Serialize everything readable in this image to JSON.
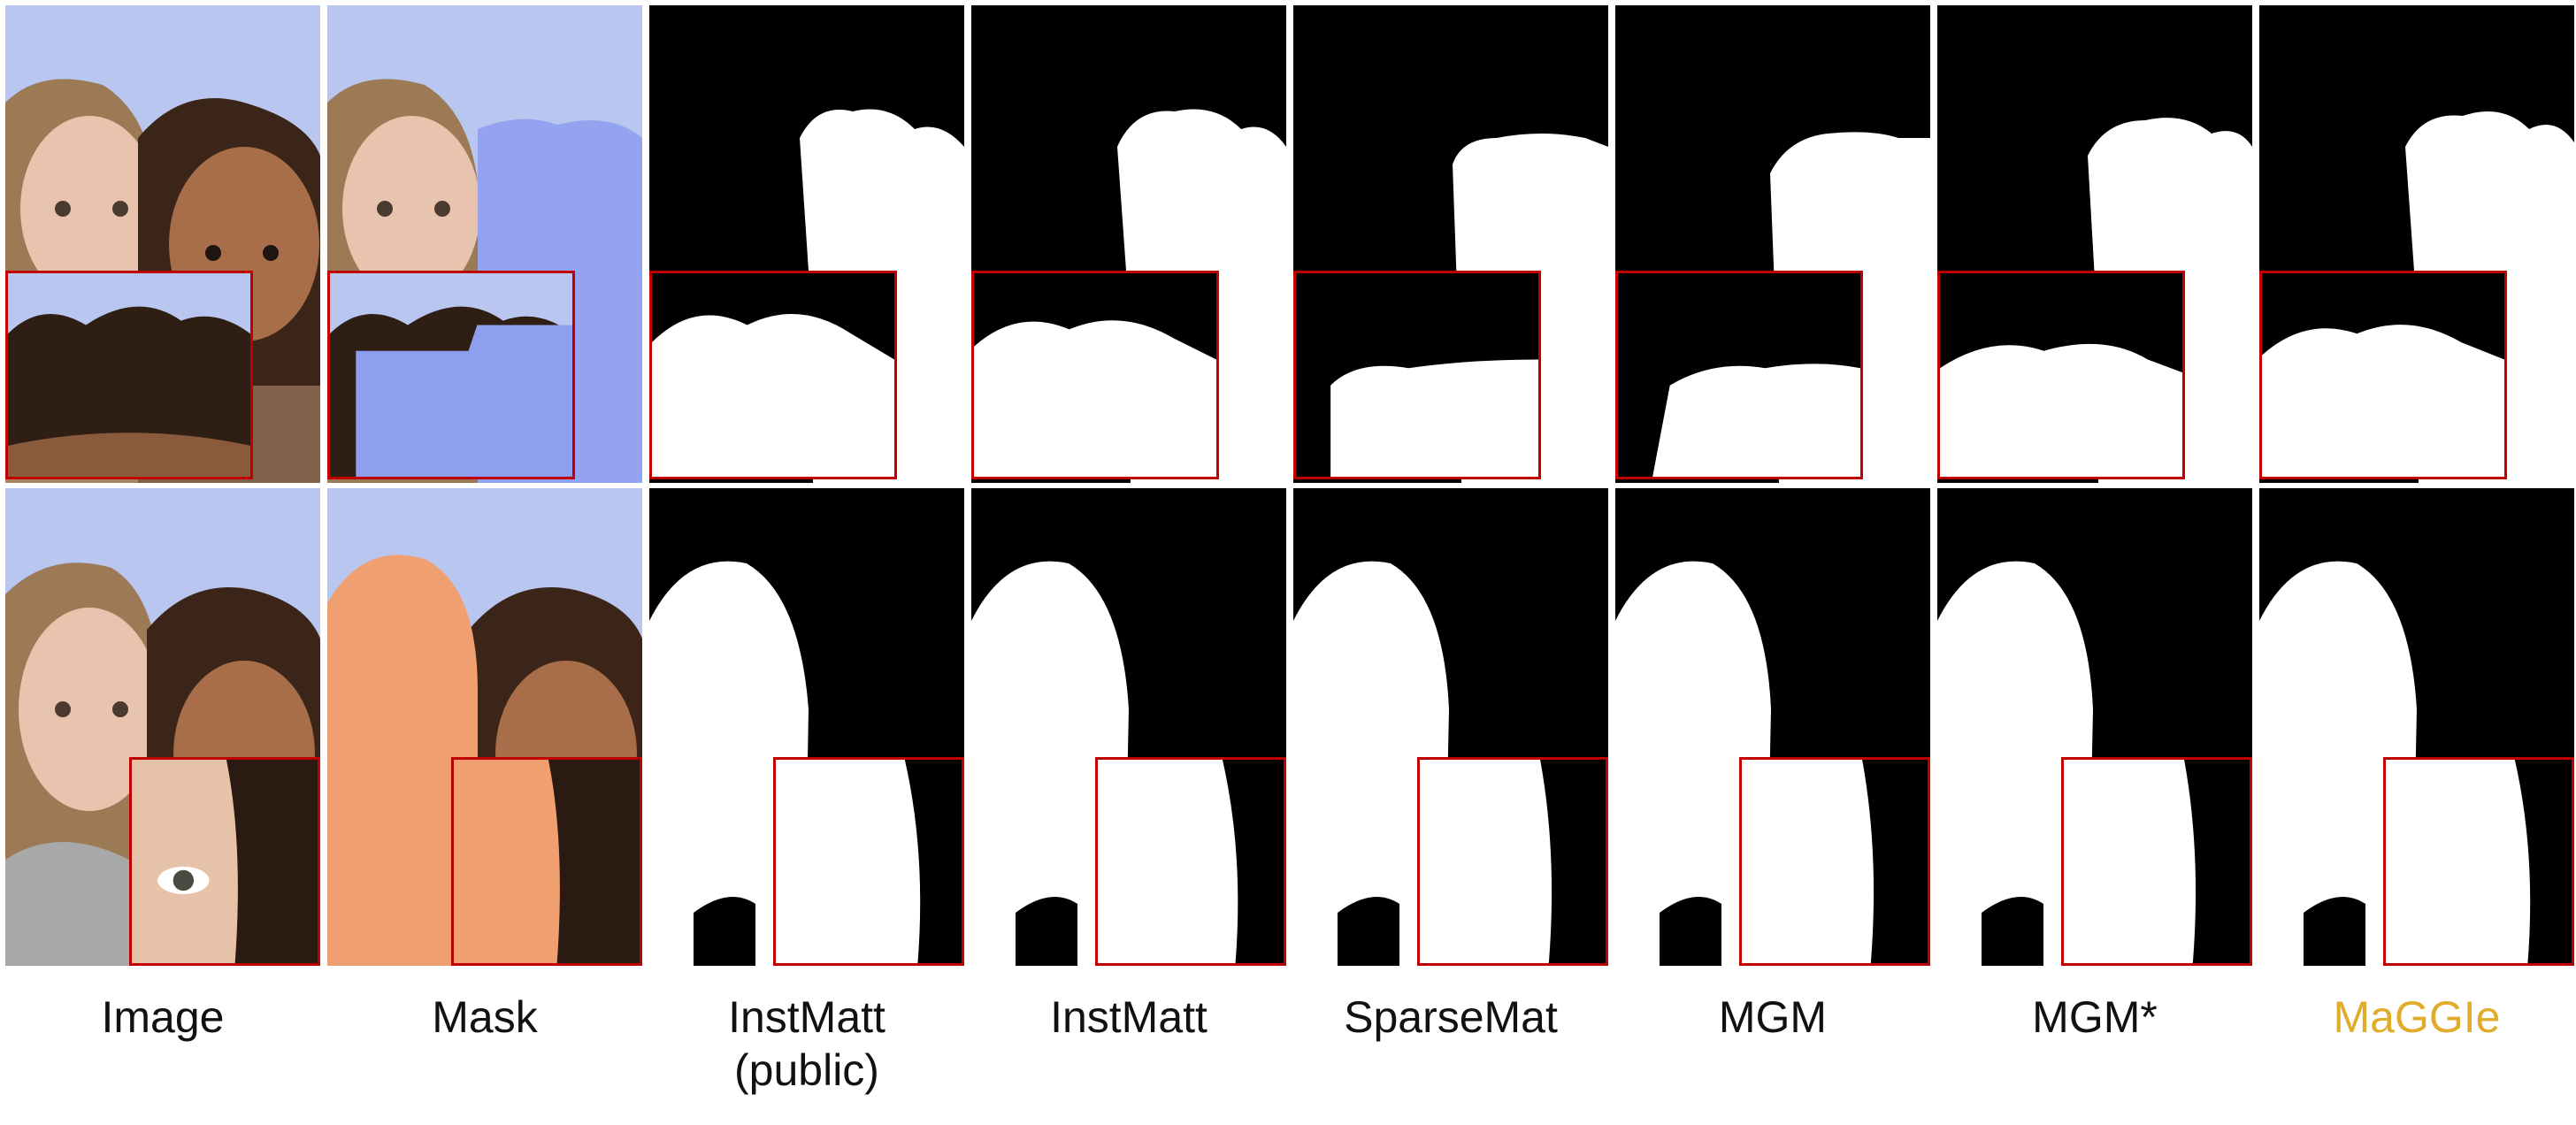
{
  "figure": {
    "columns": [
      {
        "label": "Image",
        "kind": "image"
      },
      {
        "label": "Mask",
        "kind": "mask"
      },
      {
        "label": "InstMatt\n(public)",
        "kind": "alpha"
      },
      {
        "label": "InstMatt",
        "kind": "alpha"
      },
      {
        "label": "SparseMat",
        "kind": "alpha"
      },
      {
        "label": "MGM",
        "kind": "alpha"
      },
      {
        "label": "MGM*",
        "kind": "alpha"
      },
      {
        "label": "MaGGIe",
        "kind": "alpha",
        "highlight": true
      }
    ],
    "rows": [
      {
        "target": "right-person",
        "mask_color": "#8f9ff0"
      },
      {
        "target": "left-person",
        "mask_color": "#f0a070"
      }
    ],
    "colors": {
      "zoom_border": "#c00000",
      "highlight_label": "#e2ac2b",
      "background_sky": "#b9c6ef"
    }
  }
}
